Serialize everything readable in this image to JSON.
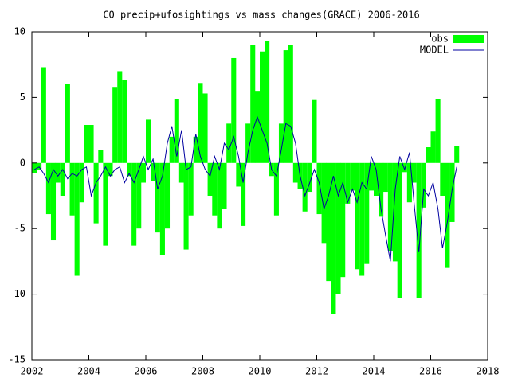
{
  "chart_data": {
    "type": "bar_line",
    "title": "CO precip+ufosightings vs mass changes(GRACE) 2006-2016",
    "x": [
      2002.0,
      2002.17,
      2002.33,
      2002.5,
      2002.67,
      2002.83,
      2003.0,
      2003.17,
      2003.33,
      2003.5,
      2003.67,
      2003.83,
      2004.0,
      2004.17,
      2004.33,
      2004.5,
      2004.67,
      2004.83,
      2005.0,
      2005.17,
      2005.33,
      2005.5,
      2005.67,
      2005.83,
      2006.0,
      2006.17,
      2006.33,
      2006.5,
      2006.67,
      2006.83,
      2007.0,
      2007.17,
      2007.33,
      2007.5,
      2007.67,
      2007.83,
      2008.0,
      2008.17,
      2008.33,
      2008.5,
      2008.67,
      2008.83,
      2009.0,
      2009.17,
      2009.33,
      2009.5,
      2009.67,
      2009.83,
      2010.0,
      2010.17,
      2010.33,
      2010.5,
      2010.67,
      2010.83,
      2011.0,
      2011.17,
      2011.33,
      2011.5,
      2011.67,
      2011.83,
      2012.0,
      2012.17,
      2012.33,
      2012.5,
      2012.67,
      2012.83,
      2013.0,
      2013.17,
      2013.33,
      2013.5,
      2013.67,
      2013.83,
      2014.0,
      2014.17,
      2014.33,
      2014.5,
      2014.67,
      2014.83,
      2015.0,
      2015.17,
      2015.33,
      2015.5,
      2015.67,
      2015.83,
      2016.0,
      2016.17,
      2016.33,
      2016.5,
      2016.67,
      2016.83
    ],
    "series": [
      {
        "name": "obs",
        "color": "#00ff00",
        "kind": "bar",
        "values": [
          -0.8,
          -0.5,
          7.3,
          -3.9,
          -5.9,
          -1.5,
          -2.5,
          6.0,
          -4.0,
          -8.6,
          -3.0,
          2.9,
          2.9,
          -4.6,
          1.0,
          -6.3,
          -1.0,
          5.8,
          7.0,
          6.3,
          -1.0,
          -6.3,
          -5.0,
          -1.5,
          3.3,
          -1.4,
          -5.3,
          -7.0,
          -5.0,
          2.0,
          4.9,
          -1.5,
          -6.6,
          -4.0,
          2.0,
          6.1,
          5.3,
          -2.5,
          -4.0,
          -5.0,
          -3.5,
          3.0,
          8.0,
          -1.8,
          -4.8,
          3.0,
          9.0,
          5.5,
          8.5,
          9.3,
          -1.0,
          -4.0,
          3.0,
          8.6,
          9.0,
          -1.5,
          -2.0,
          -3.7,
          -2.2,
          4.8,
          -3.9,
          -6.1,
          -9.0,
          -11.5,
          -10.0,
          -8.7,
          -3.1,
          -2.1,
          -8.1,
          -8.6,
          -7.7,
          -2.1,
          -2.5,
          -4.1,
          -2.2,
          -6.7,
          -7.5,
          -10.3,
          -0.7,
          -3.0,
          -1.5,
          -10.3,
          -3.4,
          1.2,
          2.4,
          4.9,
          -2.5,
          -8.0,
          -4.5,
          1.3
        ]
      },
      {
        "name": "MODEL",
        "color": "#0000a0",
        "kind": "line",
        "values": [
          -0.5,
          -0.3,
          -0.8,
          -1.5,
          -0.5,
          -1.0,
          -0.5,
          -1.2,
          -0.8,
          -1.0,
          -0.5,
          -0.3,
          -2.5,
          -1.5,
          -1.0,
          -0.3,
          -1.0,
          -0.5,
          -0.3,
          -1.5,
          -0.8,
          -1.5,
          -0.5,
          0.5,
          -0.5,
          0.3,
          -2.0,
          -1.0,
          1.5,
          2.8,
          0.5,
          2.5,
          -0.5,
          -0.3,
          2.2,
          0.5,
          -0.5,
          -1.0,
          0.5,
          -0.5,
          1.5,
          1.0,
          2.0,
          0.5,
          -1.5,
          0.8,
          2.5,
          3.5,
          2.5,
          1.5,
          -0.5,
          -1.0,
          1.0,
          3.0,
          2.8,
          1.5,
          -1.0,
          -2.5,
          -1.5,
          -0.5,
          -1.5,
          -3.5,
          -2.5,
          -1.0,
          -2.5,
          -1.5,
          -3.0,
          -2.0,
          -3.0,
          -1.5,
          -2.0,
          0.5,
          -0.5,
          -3.5,
          -5.5,
          -7.5,
          -2.0,
          0.5,
          -0.5,
          0.8,
          -3.0,
          -6.8,
          -2.0,
          -2.5,
          -1.5,
          -3.5,
          -6.5,
          -4.5,
          -2.0,
          -0.3
        ]
      }
    ],
    "xlim": [
      2002,
      2018
    ],
    "xticks": [
      2002,
      2004,
      2006,
      2008,
      2010,
      2012,
      2014,
      2016,
      2018
    ],
    "ylim": [
      -15,
      10
    ],
    "yticks": [
      -15,
      -10,
      -5,
      0,
      5,
      10
    ],
    "legend": "top-right"
  }
}
